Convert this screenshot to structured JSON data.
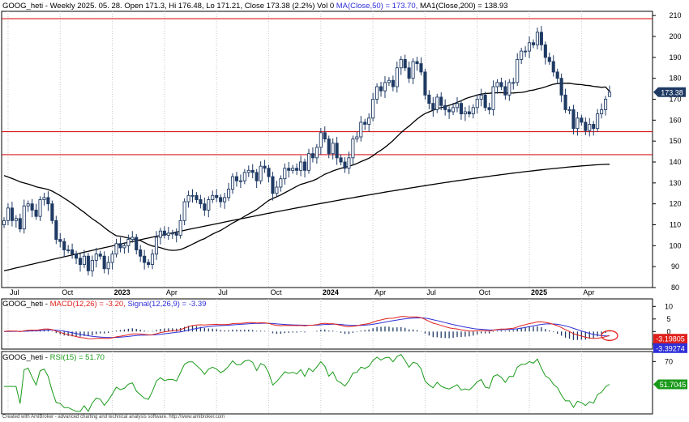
{
  "colors": {
    "up_candle": "#ffffff",
    "down_candle": "#1f3a64",
    "candle_outline": "#1f3a64",
    "ma50": "#000000",
    "ma200": "#000000",
    "hline": "#d8191c",
    "macd": "#e0201c",
    "signal": "#2f2fd8",
    "hist": "#1f3a64",
    "rsi": "#1a9a1a"
  },
  "price_panel": {
    "header": {
      "symbol": "GOOG_heti",
      "info": " - Weekly 2025. 05. 28. Open 171.3, Hi 176.48, Lo 171.21, Close 173.38 (2.2%) Vol 0 ",
      "ma50": "MA(Close,50) = 173.70,",
      "ma200": " MA1(Close,200) = 138.93"
    },
    "y_ticks": [
      "80",
      "90",
      "100",
      "110",
      "120",
      "130",
      "140",
      "150",
      "160",
      "170",
      "180",
      "190",
      "200",
      "210"
    ],
    "last_price_label": "173.38",
    "x_labels": [
      {
        "text": "Jul",
        "week": 1,
        "bold": false
      },
      {
        "text": "Oct",
        "week": 14,
        "bold": false
      },
      {
        "text": "2023",
        "week": 27,
        "bold": true
      },
      {
        "text": "Apr",
        "week": 40,
        "bold": false
      },
      {
        "text": "Jul",
        "week": 53,
        "bold": false
      },
      {
        "text": "Oct",
        "week": 66,
        "bold": false
      },
      {
        "text": "2024",
        "week": 79,
        "bold": true
      },
      {
        "text": "Apr",
        "week": 92,
        "bold": false
      },
      {
        "text": "Jul",
        "week": 105,
        "bold": false
      },
      {
        "text": "Oct",
        "week": 118,
        "bold": false
      },
      {
        "text": "2025",
        "week": 131,
        "bold": true
      },
      {
        "text": "Apr",
        "week": 144,
        "bold": false
      }
    ]
  },
  "macd_panel": {
    "header": {
      "symbol": "GOOG_heti",
      "macd": "MACD(12,26) = -3.20,",
      "signal": "Signal(12,26,9) = -3.39"
    },
    "y_ticks": [
      "-5",
      "0",
      "5",
      "10"
    ],
    "macd_label": "-3.19805",
    "signal_label": "-3.39274"
  },
  "rsi_panel": {
    "header": {
      "symbol": "GOOG_heti",
      "rsi": "RSI(15) = 51.70"
    },
    "y_ticks": [
      "70"
    ],
    "rsi_label": "51.7045"
  },
  "credit": "Created with AmiBroker - advanced charting and technical analysis software. http://www.amibroker.com",
  "chart_data": {
    "type": "candlestick",
    "title": "GOOG_heti - Weekly",
    "period": "weekly, Jun 2022 - May 2025",
    "ylim": [
      80,
      212
    ],
    "horizontal_lines": [
      208.5,
      154.5,
      143.5
    ],
    "last_bar": {
      "date": "2025-05-28",
      "open": 171.3,
      "high": 176.48,
      "low": 171.21,
      "close": 173.38
    },
    "close": [
      112,
      118,
      112,
      113,
      108,
      119,
      120,
      117,
      114,
      122,
      123,
      120,
      112,
      103,
      102,
      98,
      98,
      96,
      94,
      91,
      95,
      88,
      93,
      96,
      95,
      89,
      92,
      96,
      101,
      99,
      100,
      103,
      104,
      98,
      95,
      92,
      91,
      96,
      104,
      107,
      105,
      106,
      106,
      105,
      112,
      121,
      124,
      124,
      122,
      120,
      117,
      122,
      124,
      123,
      121,
      123,
      127,
      133,
      131,
      131,
      135,
      136,
      135,
      131,
      138,
      137,
      133,
      125,
      128,
      132,
      137,
      136,
      137,
      136,
      140,
      136,
      144,
      142,
      147,
      154,
      151,
      144,
      149,
      142,
      140,
      137,
      142,
      151,
      152,
      159,
      158,
      161,
      170,
      176,
      174,
      178,
      179,
      176,
      185,
      189,
      185,
      180,
      188,
      187,
      183,
      172,
      168,
      165,
      171,
      167,
      165,
      164,
      166,
      168,
      163,
      164,
      163,
      166,
      170,
      172,
      166,
      165,
      176,
      178,
      176,
      172,
      178,
      178,
      189,
      193,
      193,
      197,
      196,
      202,
      196,
      190,
      188,
      183,
      180,
      172,
      165,
      165,
      156,
      161,
      159,
      155,
      158,
      156,
      163,
      165,
      170,
      173.38
    ],
    "ma50_start": 133.5,
    "ma50_end": 173.7,
    "ma200_start": 88,
    "ma200_end": 138.93,
    "macd_last": -3.2,
    "signal_last": -3.39,
    "rsi_last": 51.7
  }
}
